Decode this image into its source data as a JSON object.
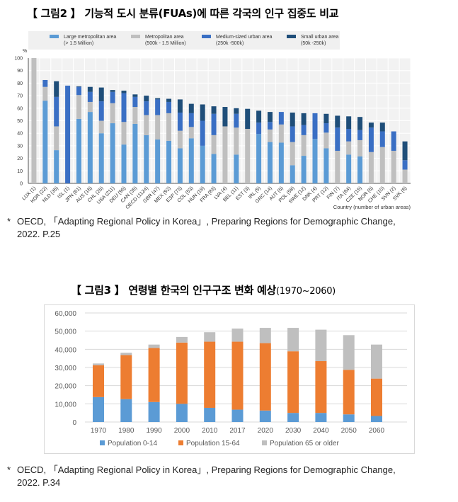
{
  "figure2": {
    "title_open": "【 그림2 】",
    "title_text": "기능적 도시 분류(FUAs)에 따른 각국의 인구 집중도 비교",
    "source_line1": "OECD, 「Adapting Regional Policy in Korea」, Preparing Regions for Demographic Change,",
    "source_line2": "2022. P.25",
    "source_mark": "*"
  },
  "figure3": {
    "title_open": "【 그림3 】",
    "title_text": "연령별 한국의 인구구조 변화 예상",
    "title_sub": "(1970~2060)",
    "source_line1": "OECD, 「Adapting Regional Policy in Korea」, Preparing Regions for Demographic Change,",
    "source_line2": "2022. P.34",
    "source_mark": "*"
  },
  "chart_data": [
    {
      "type": "bar",
      "stacked": true,
      "ylabel": "%",
      "xlabel": "Country (number of urban areas)",
      "ylim": [
        0,
        100
      ],
      "yticks": [
        0,
        10,
        20,
        30,
        40,
        50,
        60,
        70,
        80,
        90,
        100
      ],
      "grid": true,
      "legend_placement": "top",
      "categories": [
        "LUX (1)",
        "KOR (22)",
        "NLD (35)",
        "ISL (1)",
        "JPN (61)",
        "AUS (18)",
        "CHL (26)",
        "USA (211)",
        "DEU (96)",
        "CAN (35)",
        "OECD (1124)",
        "GBR (47)",
        "MEX (92)",
        "ESP (73)",
        "COL (53)",
        "HUN (19)",
        "FRA (83)",
        "LVA (4)",
        "BEL (11)",
        "EST (3)",
        "IRL (5)",
        "GRC (14)",
        "AUT (6)",
        "POL (58)",
        "SWE (12)",
        "DNK (4)",
        "PRT (12)",
        "FIN (7)",
        "ITA (84)",
        "CZE (15)",
        "NOR (6)",
        "CHE (10)",
        "SVN (2)",
        "SVK (8)"
      ],
      "series": [
        {
          "name": "Large metropolitan area",
          "name2": "(> 1.5 Million)",
          "color": "#5b9bd5",
          "values": [
            0,
            66,
            26.5,
            0,
            51.5,
            57,
            40,
            48,
            31,
            47.5,
            38.5,
            35,
            34,
            28,
            36,
            30,
            23.5,
            0,
            23,
            0,
            39.5,
            33,
            32.5,
            14.5,
            22,
            35.5,
            28,
            0,
            23,
            21.5,
            0,
            0,
            0,
            0
          ]
        },
        {
          "name": "Metropolitan area",
          "name2": "(500k - 1.5 Million)",
          "color": "#bfbfbf",
          "values": [
            100,
            11,
            19,
            0,
            19,
            8,
            10,
            16,
            18,
            13.5,
            16,
            19.5,
            22,
            14,
            9,
            0,
            15,
            45.5,
            21.5,
            43.5,
            0,
            10,
            14.5,
            18.5,
            16.5,
            0,
            12.5,
            26,
            10.5,
            13,
            25,
            29,
            26,
            11
          ]
        },
        {
          "name": "Medium-sized urban area",
          "name2": "(250k -500k)",
          "color": "#3a6fc4",
          "values": [
            0,
            5.5,
            23.5,
            78,
            6.5,
            8,
            15.5,
            9,
            23,
            8,
            11,
            12.5,
            9,
            14.5,
            11,
            20,
            17,
            0,
            11,
            0,
            9,
            6,
            10,
            12.5,
            8,
            20.5,
            7.5,
            18.5,
            10,
            8,
            19.5,
            12.5,
            15.5,
            7.5
          ]
        },
        {
          "name": "Small urban area",
          "name2": "(50k -250k)",
          "color": "#1f4e79",
          "values": [
            0,
            0,
            12.5,
            0,
            0.5,
            4,
            11,
            1.5,
            2,
            2,
            4.5,
            1,
            2.5,
            10.5,
            7.5,
            13,
            6,
            15.5,
            4.5,
            16,
            9.5,
            8,
            0,
            11,
            9.5,
            0,
            7.5,
            9.5,
            10,
            10.5,
            4,
            7,
            0,
            15
          ]
        }
      ]
    },
    {
      "type": "bar",
      "stacked": true,
      "ylim": [
        0,
        60000
      ],
      "yticks": [
        "0",
        "10,000",
        "20,000",
        "30,000",
        "40,000",
        "50,000",
        "60,000"
      ],
      "grid": true,
      "legend_placement": "bottom",
      "categories": [
        "1970",
        "1980",
        "1990",
        "2000",
        "2010",
        "2017",
        "2020",
        "2030",
        "2040",
        "2050",
        "2060"
      ],
      "series": [
        {
          "name": "Population 0-14",
          "color": "#5b9bd5",
          "values": [
            13700,
            12600,
            11000,
            10000,
            7800,
            6800,
            6300,
            5000,
            5000,
            4200,
            3300
          ]
        },
        {
          "name": "Population 15-64",
          "color": "#ed7d31",
          "values": [
            17500,
            24200,
            29700,
            33700,
            36400,
            37400,
            37100,
            33900,
            28500,
            24500,
            20600
          ]
        },
        {
          "name": "Population 65 or older",
          "color": "#bfbfbf",
          "values": [
            1000,
            1300,
            1900,
            3100,
            5200,
            7200,
            8400,
            12900,
            17300,
            19100,
            18700
          ]
        }
      ]
    }
  ]
}
